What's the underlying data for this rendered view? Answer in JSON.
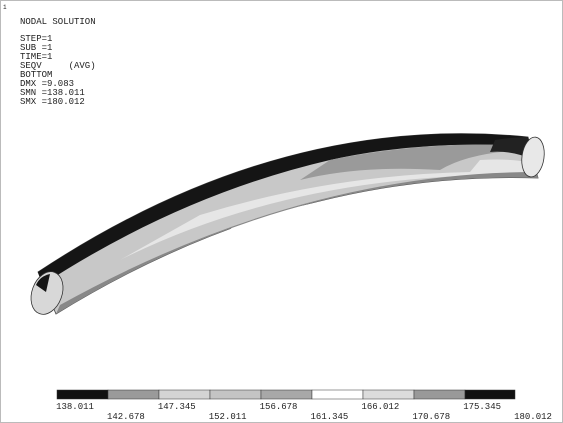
{
  "window_number": "1",
  "header": {
    "title": "NODAL SOLUTION",
    "lines": [
      "STEP=1",
      "SUB =1",
      "TIME=1",
      "SEQV     (AVG)",
      "BOTTOM",
      "DMX =9.083",
      "SMN =138.011",
      "SMX =180.012"
    ]
  },
  "legend": {
    "labels": [
      "138.011",
      "142.678",
      "147.345",
      "152.011",
      "156.678",
      "161.345",
      "166.012",
      "170.678",
      "175.345",
      "180.012"
    ]
  }
}
